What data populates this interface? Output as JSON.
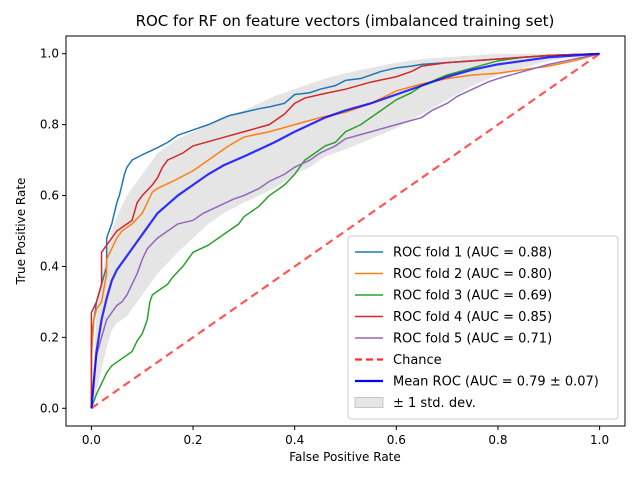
{
  "chart_data": {
    "type": "line",
    "title": "ROC for RF on feature vectors (imbalanced training set)",
    "xlabel": "False Positive Rate",
    "ylabel": "True Positive Rate",
    "xlim": [
      -0.05,
      1.05
    ],
    "ylim": [
      -0.05,
      1.05
    ],
    "xticks": [
      "0.0",
      "0.2",
      "0.4",
      "0.6",
      "0.8",
      "1.0"
    ],
    "yticks": [
      "0.0",
      "0.2",
      "0.4",
      "0.6",
      "0.8",
      "1.0"
    ],
    "grid": false,
    "legend_position": "lower-right",
    "series": [
      {
        "name": "ROC fold 1 (AUC = 0.88)",
        "color": "#1f77b4",
        "x": [
          0,
          0,
          0.005,
          0.01,
          0.02,
          0.03,
          0.03,
          0.04,
          0.05,
          0.055,
          0.06,
          0.065,
          0.07,
          0.08,
          0.1,
          0.13,
          0.15,
          0.17,
          0.2,
          0.23,
          0.27,
          0.3,
          0.33,
          0.35,
          0.38,
          0.4,
          0.43,
          0.45,
          0.48,
          0.5,
          0.53,
          0.55,
          0.57,
          0.6,
          0.63,
          0.65,
          0.7,
          0.75,
          0.8,
          0.85,
          0.9,
          0.95,
          1.0
        ],
        "y": [
          0,
          0.2,
          0.25,
          0.3,
          0.35,
          0.4,
          0.48,
          0.52,
          0.58,
          0.6,
          0.63,
          0.66,
          0.68,
          0.7,
          0.715,
          0.735,
          0.75,
          0.77,
          0.785,
          0.8,
          0.825,
          0.835,
          0.845,
          0.85,
          0.86,
          0.885,
          0.89,
          0.9,
          0.91,
          0.925,
          0.93,
          0.94,
          0.95,
          0.96,
          0.965,
          0.97,
          0.975,
          0.98,
          0.985,
          0.99,
          0.995,
          0.998,
          1.0
        ]
      },
      {
        "name": "ROC fold 2 (AUC = 0.80)",
        "color": "#ff7f0e",
        "x": [
          0,
          0,
          0.005,
          0.01,
          0.02,
          0.03,
          0.03,
          0.04,
          0.05,
          0.06,
          0.08,
          0.1,
          0.11,
          0.12,
          0.13,
          0.16,
          0.2,
          0.23,
          0.27,
          0.3,
          0.35,
          0.4,
          0.45,
          0.5,
          0.55,
          0.6,
          0.65,
          0.7,
          0.75,
          0.8,
          0.85,
          0.9,
          0.95,
          1.0
        ],
        "y": [
          0,
          0.15,
          0.25,
          0.28,
          0.3,
          0.38,
          0.42,
          0.45,
          0.48,
          0.5,
          0.52,
          0.55,
          0.58,
          0.61,
          0.62,
          0.64,
          0.67,
          0.7,
          0.74,
          0.765,
          0.78,
          0.8,
          0.82,
          0.835,
          0.86,
          0.895,
          0.915,
          0.93,
          0.94,
          0.945,
          0.955,
          0.965,
          0.98,
          1.0
        ]
      },
      {
        "name": "ROC fold 3 (AUC = 0.69)",
        "color": "#2ca02c",
        "x": [
          0,
          0.005,
          0.01,
          0.02,
          0.03,
          0.04,
          0.05,
          0.06,
          0.08,
          0.09,
          0.1,
          0.11,
          0.115,
          0.12,
          0.13,
          0.15,
          0.16,
          0.18,
          0.2,
          0.23,
          0.26,
          0.29,
          0.3,
          0.33,
          0.35,
          0.37,
          0.38,
          0.4,
          0.42,
          0.44,
          0.46,
          0.48,
          0.5,
          0.53,
          0.55,
          0.58,
          0.6,
          0.63,
          0.65,
          0.7,
          0.75,
          0.8,
          0.85,
          0.9,
          0.95,
          1.0
        ],
        "y": [
          0,
          0.02,
          0.04,
          0.07,
          0.1,
          0.12,
          0.13,
          0.14,
          0.16,
          0.19,
          0.21,
          0.25,
          0.3,
          0.32,
          0.33,
          0.35,
          0.37,
          0.4,
          0.44,
          0.46,
          0.49,
          0.52,
          0.54,
          0.57,
          0.6,
          0.62,
          0.63,
          0.66,
          0.7,
          0.72,
          0.74,
          0.75,
          0.78,
          0.8,
          0.82,
          0.85,
          0.87,
          0.89,
          0.91,
          0.94,
          0.96,
          0.98,
          0.99,
          0.995,
          0.998,
          1.0
        ]
      },
      {
        "name": "ROC fold 4 (AUC = 0.85)",
        "color": "#d62728",
        "x": [
          0,
          0,
          0.01,
          0.02,
          0.02,
          0.03,
          0.04,
          0.05,
          0.06,
          0.07,
          0.08,
          0.09,
          0.1,
          0.12,
          0.13,
          0.14,
          0.15,
          0.18,
          0.2,
          0.25,
          0.3,
          0.35,
          0.38,
          0.4,
          0.42,
          0.45,
          0.5,
          0.55,
          0.6,
          0.63,
          0.65,
          0.7,
          0.75,
          0.8,
          0.85,
          0.9,
          0.95,
          1.0
        ],
        "y": [
          0,
          0.27,
          0.3,
          0.35,
          0.44,
          0.46,
          0.48,
          0.5,
          0.51,
          0.52,
          0.53,
          0.58,
          0.6,
          0.63,
          0.65,
          0.68,
          0.7,
          0.72,
          0.74,
          0.76,
          0.78,
          0.8,
          0.83,
          0.86,
          0.875,
          0.885,
          0.9,
          0.92,
          0.935,
          0.95,
          0.965,
          0.975,
          0.98,
          0.985,
          0.99,
          0.995,
          0.998,
          1.0
        ]
      },
      {
        "name": "ROC fold 5 (AUC = 0.71)",
        "color": "#9467bd",
        "x": [
          0,
          0.005,
          0.01,
          0.02,
          0.03,
          0.04,
          0.05,
          0.06,
          0.07,
          0.08,
          0.09,
          0.1,
          0.11,
          0.13,
          0.15,
          0.17,
          0.2,
          0.22,
          0.25,
          0.28,
          0.3,
          0.33,
          0.35,
          0.38,
          0.4,
          0.43,
          0.45,
          0.48,
          0.5,
          0.55,
          0.6,
          0.65,
          0.67,
          0.7,
          0.72,
          0.75,
          0.78,
          0.8,
          0.85,
          0.9,
          0.95,
          1.0
        ],
        "y": [
          0,
          0.08,
          0.15,
          0.2,
          0.25,
          0.27,
          0.29,
          0.3,
          0.32,
          0.35,
          0.38,
          0.42,
          0.45,
          0.48,
          0.5,
          0.52,
          0.53,
          0.55,
          0.57,
          0.59,
          0.6,
          0.62,
          0.64,
          0.66,
          0.68,
          0.7,
          0.72,
          0.74,
          0.76,
          0.78,
          0.8,
          0.82,
          0.84,
          0.86,
          0.88,
          0.9,
          0.92,
          0.93,
          0.95,
          0.97,
          0.985,
          1.0
        ]
      }
    ],
    "chance": {
      "name": "Chance",
      "color": "#ff2a2a",
      "x": [
        0,
        1
      ],
      "y": [
        0,
        1
      ]
    },
    "mean": {
      "name": "Mean ROC (AUC = 0.79 ± 0.07)",
      "color": "#0000ff",
      "x": [
        0,
        0.01,
        0.02,
        0.03,
        0.04,
        0.05,
        0.06,
        0.07,
        0.08,
        0.09,
        0.1,
        0.11,
        0.12,
        0.13,
        0.15,
        0.17,
        0.2,
        0.23,
        0.26,
        0.3,
        0.33,
        0.36,
        0.4,
        0.43,
        0.46,
        0.5,
        0.55,
        0.6,
        0.65,
        0.7,
        0.75,
        0.8,
        0.85,
        0.9,
        0.95,
        1.0
      ],
      "y": [
        0,
        0.16,
        0.25,
        0.31,
        0.36,
        0.39,
        0.41,
        0.43,
        0.45,
        0.47,
        0.49,
        0.51,
        0.53,
        0.55,
        0.575,
        0.6,
        0.63,
        0.66,
        0.685,
        0.71,
        0.73,
        0.75,
        0.78,
        0.8,
        0.82,
        0.84,
        0.86,
        0.885,
        0.91,
        0.935,
        0.955,
        0.97,
        0.98,
        0.99,
        0.995,
        1.0
      ]
    },
    "std_band": {
      "name": "± 1 std. dev.",
      "color": "#bfbfbf",
      "x": [
        0,
        0.01,
        0.02,
        0.03,
        0.04,
        0.05,
        0.06,
        0.07,
        0.08,
        0.09,
        0.1,
        0.11,
        0.12,
        0.13,
        0.15,
        0.17,
        0.2,
        0.23,
        0.26,
        0.3,
        0.33,
        0.36,
        0.4,
        0.43,
        0.46,
        0.5,
        0.55,
        0.6,
        0.65,
        0.7,
        0.75,
        0.8,
        0.85,
        0.9,
        0.95,
        1.0
      ],
      "upper": [
        0,
        0.27,
        0.37,
        0.44,
        0.5,
        0.54,
        0.57,
        0.6,
        0.62,
        0.64,
        0.66,
        0.68,
        0.7,
        0.72,
        0.74,
        0.76,
        0.78,
        0.8,
        0.82,
        0.84,
        0.86,
        0.88,
        0.9,
        0.915,
        0.93,
        0.945,
        0.96,
        0.975,
        0.985,
        0.99,
        0.995,
        1.0,
        1.0,
        1.0,
        1.0,
        1.0
      ],
      "lower": [
        0,
        0.05,
        0.11,
        0.17,
        0.22,
        0.24,
        0.25,
        0.26,
        0.28,
        0.3,
        0.32,
        0.34,
        0.36,
        0.38,
        0.41,
        0.44,
        0.48,
        0.52,
        0.55,
        0.58,
        0.6,
        0.62,
        0.66,
        0.68,
        0.71,
        0.73,
        0.76,
        0.79,
        0.83,
        0.87,
        0.91,
        0.94,
        0.96,
        0.98,
        0.99,
        1.0
      ]
    }
  }
}
